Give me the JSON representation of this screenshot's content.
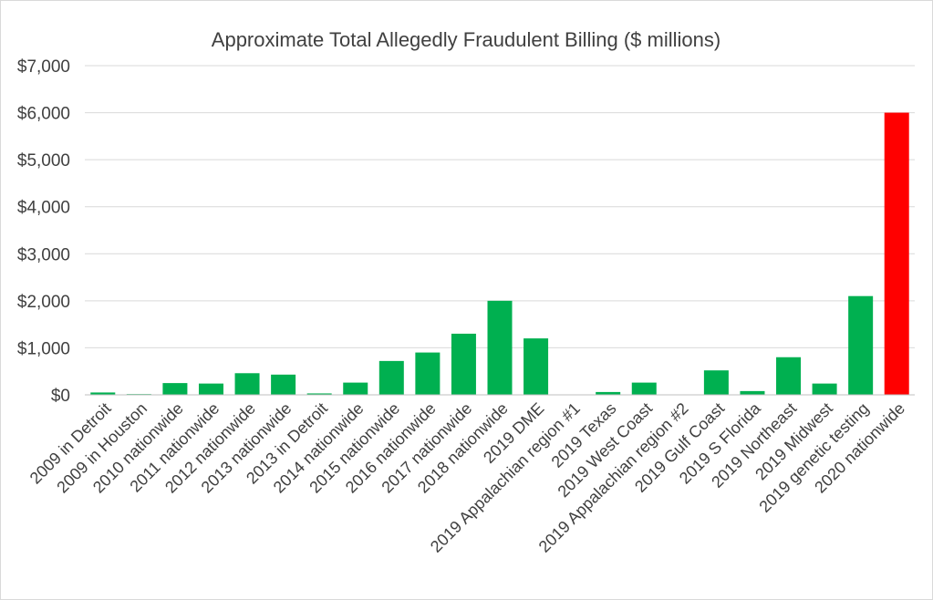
{
  "chart_data": {
    "type": "bar",
    "title": "Approximate Total Allegedly Fraudulent Billing ($ millions)",
    "xlabel": "",
    "ylabel": "",
    "ylim": [
      0,
      7000
    ],
    "yticks": [
      0,
      1000,
      2000,
      3000,
      4000,
      5000,
      6000,
      7000
    ],
    "ytick_labels": [
      "$0",
      "$1,000",
      "$2,000",
      "$3,000",
      "$4,000",
      "$5,000",
      "$6,000",
      "$7,000"
    ],
    "grid": true,
    "categories": [
      "2009 in Detroit",
      "2009 in Houston",
      "2010 nationwide",
      "2011 nationwide",
      "2012 nationwide",
      "2013 nationwide",
      "2013 in Detroit",
      "2014 nationwide",
      "2015 nationwide",
      "2016 nationwide",
      "2017 nationwide",
      "2018 nationwide",
      "2019 DME",
      "2019 Appalachian region #1",
      "2019 Texas",
      "2019 West Coast",
      "2019 Appalachian region #2",
      "2019 Gulf Coast",
      "2019 S Florida",
      "2019 Northeast",
      "2019 Midwest",
      "2019 genetic testing",
      "2020 nationwide"
    ],
    "values": [
      50,
      16,
      250,
      240,
      460,
      430,
      30,
      260,
      720,
      900,
      1300,
      2000,
      1200,
      0,
      60,
      260,
      0,
      520,
      80,
      800,
      240,
      2100,
      6000
    ],
    "colors": {
      "default": "#00b050",
      "highlight": "#ff0000",
      "grid": "#d9d9d9",
      "axis": "#bfbfbf",
      "text": "#404040"
    },
    "highlight_index": 22
  }
}
